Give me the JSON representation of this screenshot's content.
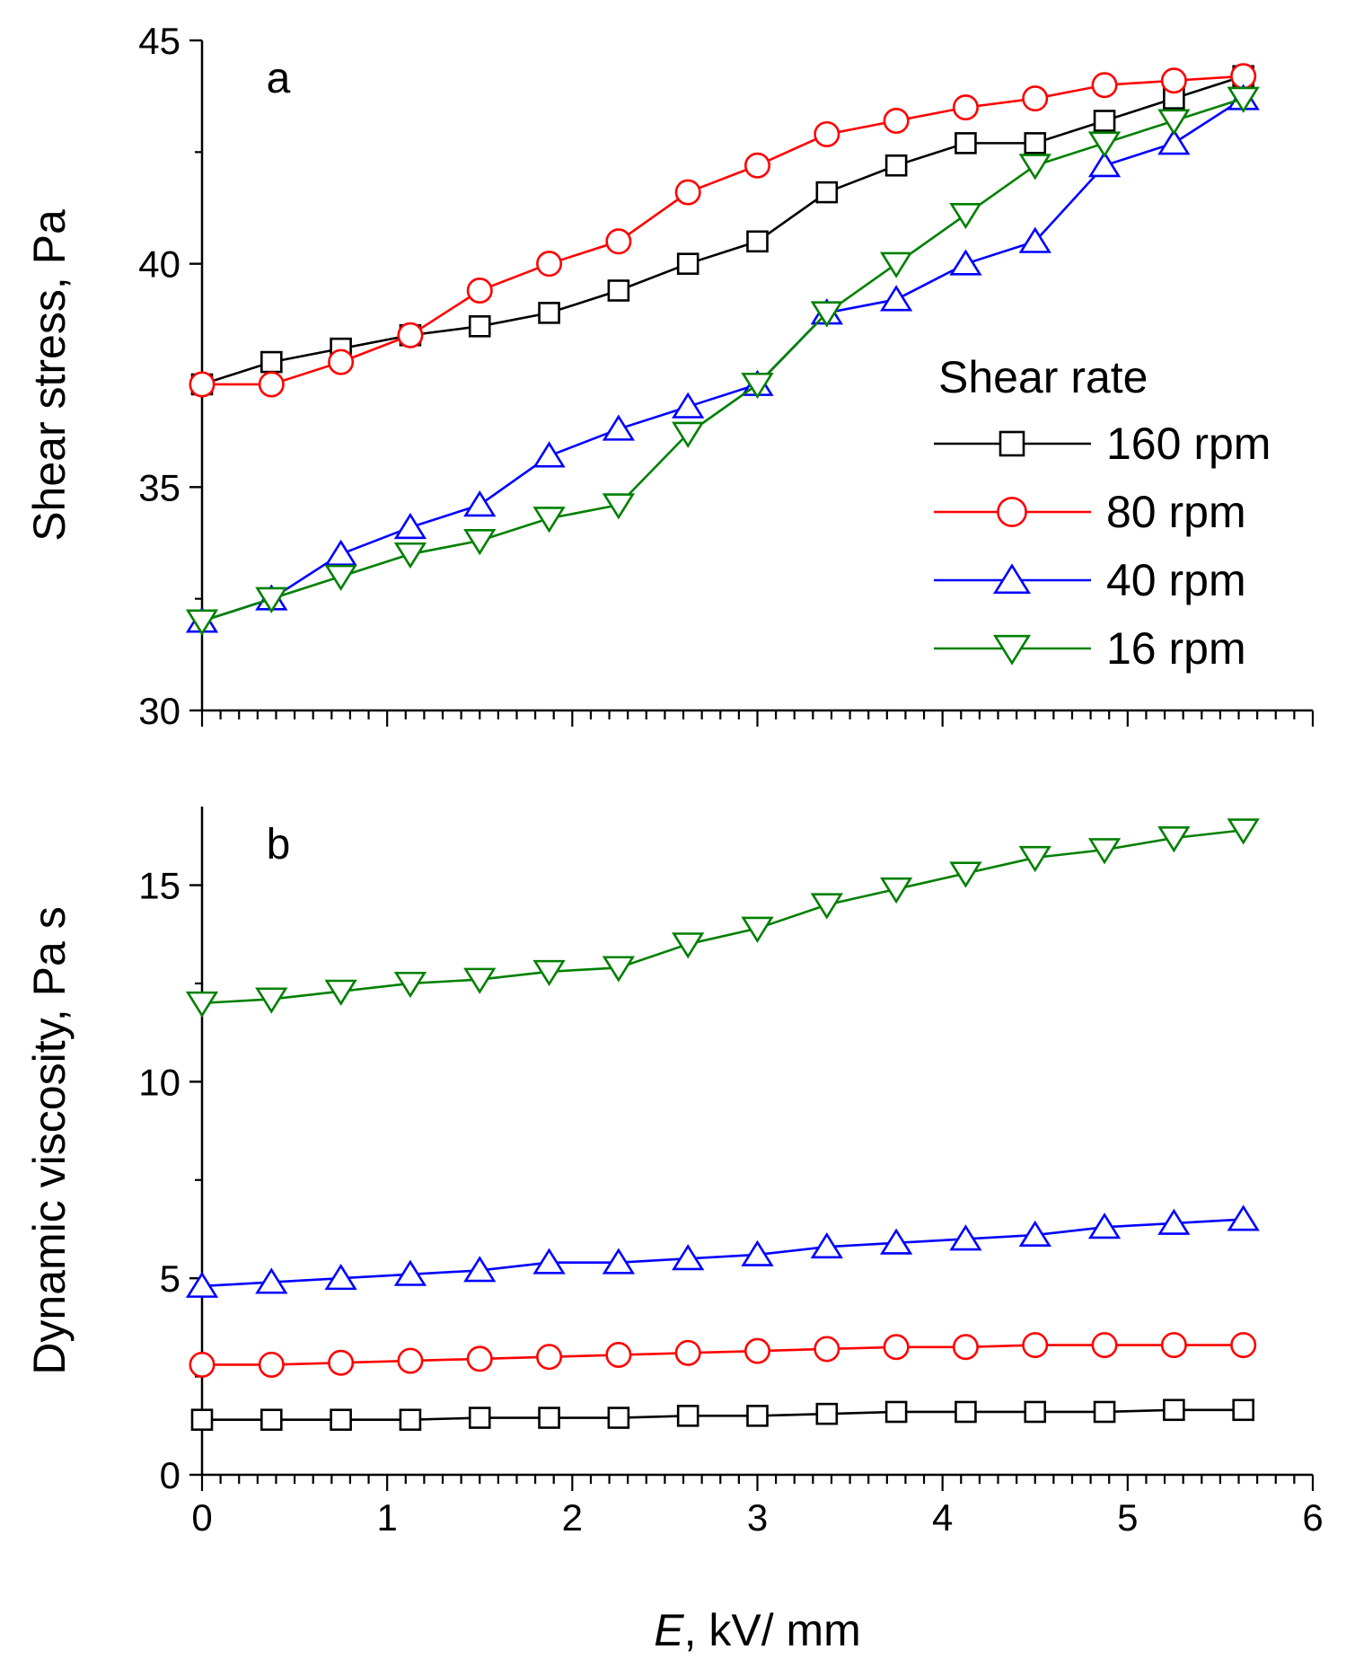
{
  "chart_data": {
    "type": "line",
    "xlabel_italic": "E",
    "xlabel_rest": ", kV/ mm",
    "xlim": [
      0,
      6
    ],
    "xticks": [
      "0",
      "1",
      "2",
      "3",
      "4",
      "5",
      "6"
    ],
    "x": [
      0,
      0.375,
      0.75,
      1.125,
      1.5,
      1.875,
      2.25,
      2.625,
      3.0,
      3.375,
      3.75,
      4.125,
      4.5,
      4.875,
      5.25,
      5.625
    ],
    "legend": {
      "title": "Shear rate",
      "position": "right, inside panel a"
    },
    "series_styles": [
      {
        "name": "160 rpm",
        "color": "#000000",
        "marker": "square"
      },
      {
        "name": "80 rpm",
        "color": "#ff0000",
        "marker": "circle"
      },
      {
        "name": "40 rpm",
        "color": "#0000ff",
        "marker": "triangle-up"
      },
      {
        "name": "16 rpm",
        "color": "#008000",
        "marker": "triangle-down"
      }
    ],
    "panels": [
      {
        "letter": "a",
        "ylabel": "Shear stress, Pa",
        "ylim": [
          30,
          45
        ],
        "yticks": [
          "30",
          "35",
          "40",
          "45"
        ],
        "series": [
          {
            "name": "160 rpm",
            "values": [
              37.3,
              37.8,
              38.1,
              38.4,
              38.6,
              38.9,
              39.4,
              40.0,
              40.5,
              41.6,
              42.2,
              42.7,
              42.7,
              43.2,
              43.7,
              44.2
            ]
          },
          {
            "name": "80 rpm",
            "values": [
              37.3,
              37.3,
              37.8,
              38.4,
              39.4,
              40.0,
              40.5,
              41.6,
              42.2,
              42.9,
              43.2,
              43.5,
              43.7,
              44.0,
              44.1,
              44.2
            ]
          },
          {
            "name": "40 rpm",
            "values": [
              32.0,
              32.5,
              33.5,
              34.1,
              34.6,
              35.7,
              36.3,
              36.8,
              37.3,
              38.9,
              39.2,
              40.0,
              40.5,
              42.2,
              42.7,
              43.7
            ]
          },
          {
            "name": "16 rpm",
            "values": [
              32.0,
              32.5,
              33.0,
              33.5,
              33.8,
              34.3,
              34.6,
              36.2,
              37.3,
              38.9,
              40.0,
              41.1,
              42.2,
              42.7,
              43.2,
              43.7
            ]
          }
        ]
      },
      {
        "letter": "b",
        "ylabel": "Dynamic viscosity, Pa s",
        "ylim": [
          0,
          17
        ],
        "yticks": [
          "0",
          "5",
          "10",
          "15"
        ],
        "series": [
          {
            "name": "160 rpm",
            "values": [
              1.4,
              1.4,
              1.4,
              1.4,
              1.45,
              1.45,
              1.45,
              1.5,
              1.5,
              1.55,
              1.6,
              1.6,
              1.6,
              1.6,
              1.65,
              1.65
            ]
          },
          {
            "name": "80 rpm",
            "values": [
              2.8,
              2.8,
              2.85,
              2.9,
              2.95,
              3.0,
              3.05,
              3.1,
              3.15,
              3.2,
              3.25,
              3.25,
              3.3,
              3.3,
              3.3,
              3.3
            ]
          },
          {
            "name": "40 rpm",
            "values": [
              4.8,
              4.9,
              5.0,
              5.1,
              5.2,
              5.4,
              5.4,
              5.5,
              5.6,
              5.8,
              5.9,
              6.0,
              6.1,
              6.3,
              6.4,
              6.5
            ]
          },
          {
            "name": "16 rpm",
            "values": [
              12.0,
              12.1,
              12.3,
              12.5,
              12.6,
              12.8,
              12.9,
              13.5,
              13.9,
              14.5,
              14.9,
              15.3,
              15.7,
              15.9,
              16.2,
              16.4
            ]
          }
        ]
      }
    ]
  }
}
